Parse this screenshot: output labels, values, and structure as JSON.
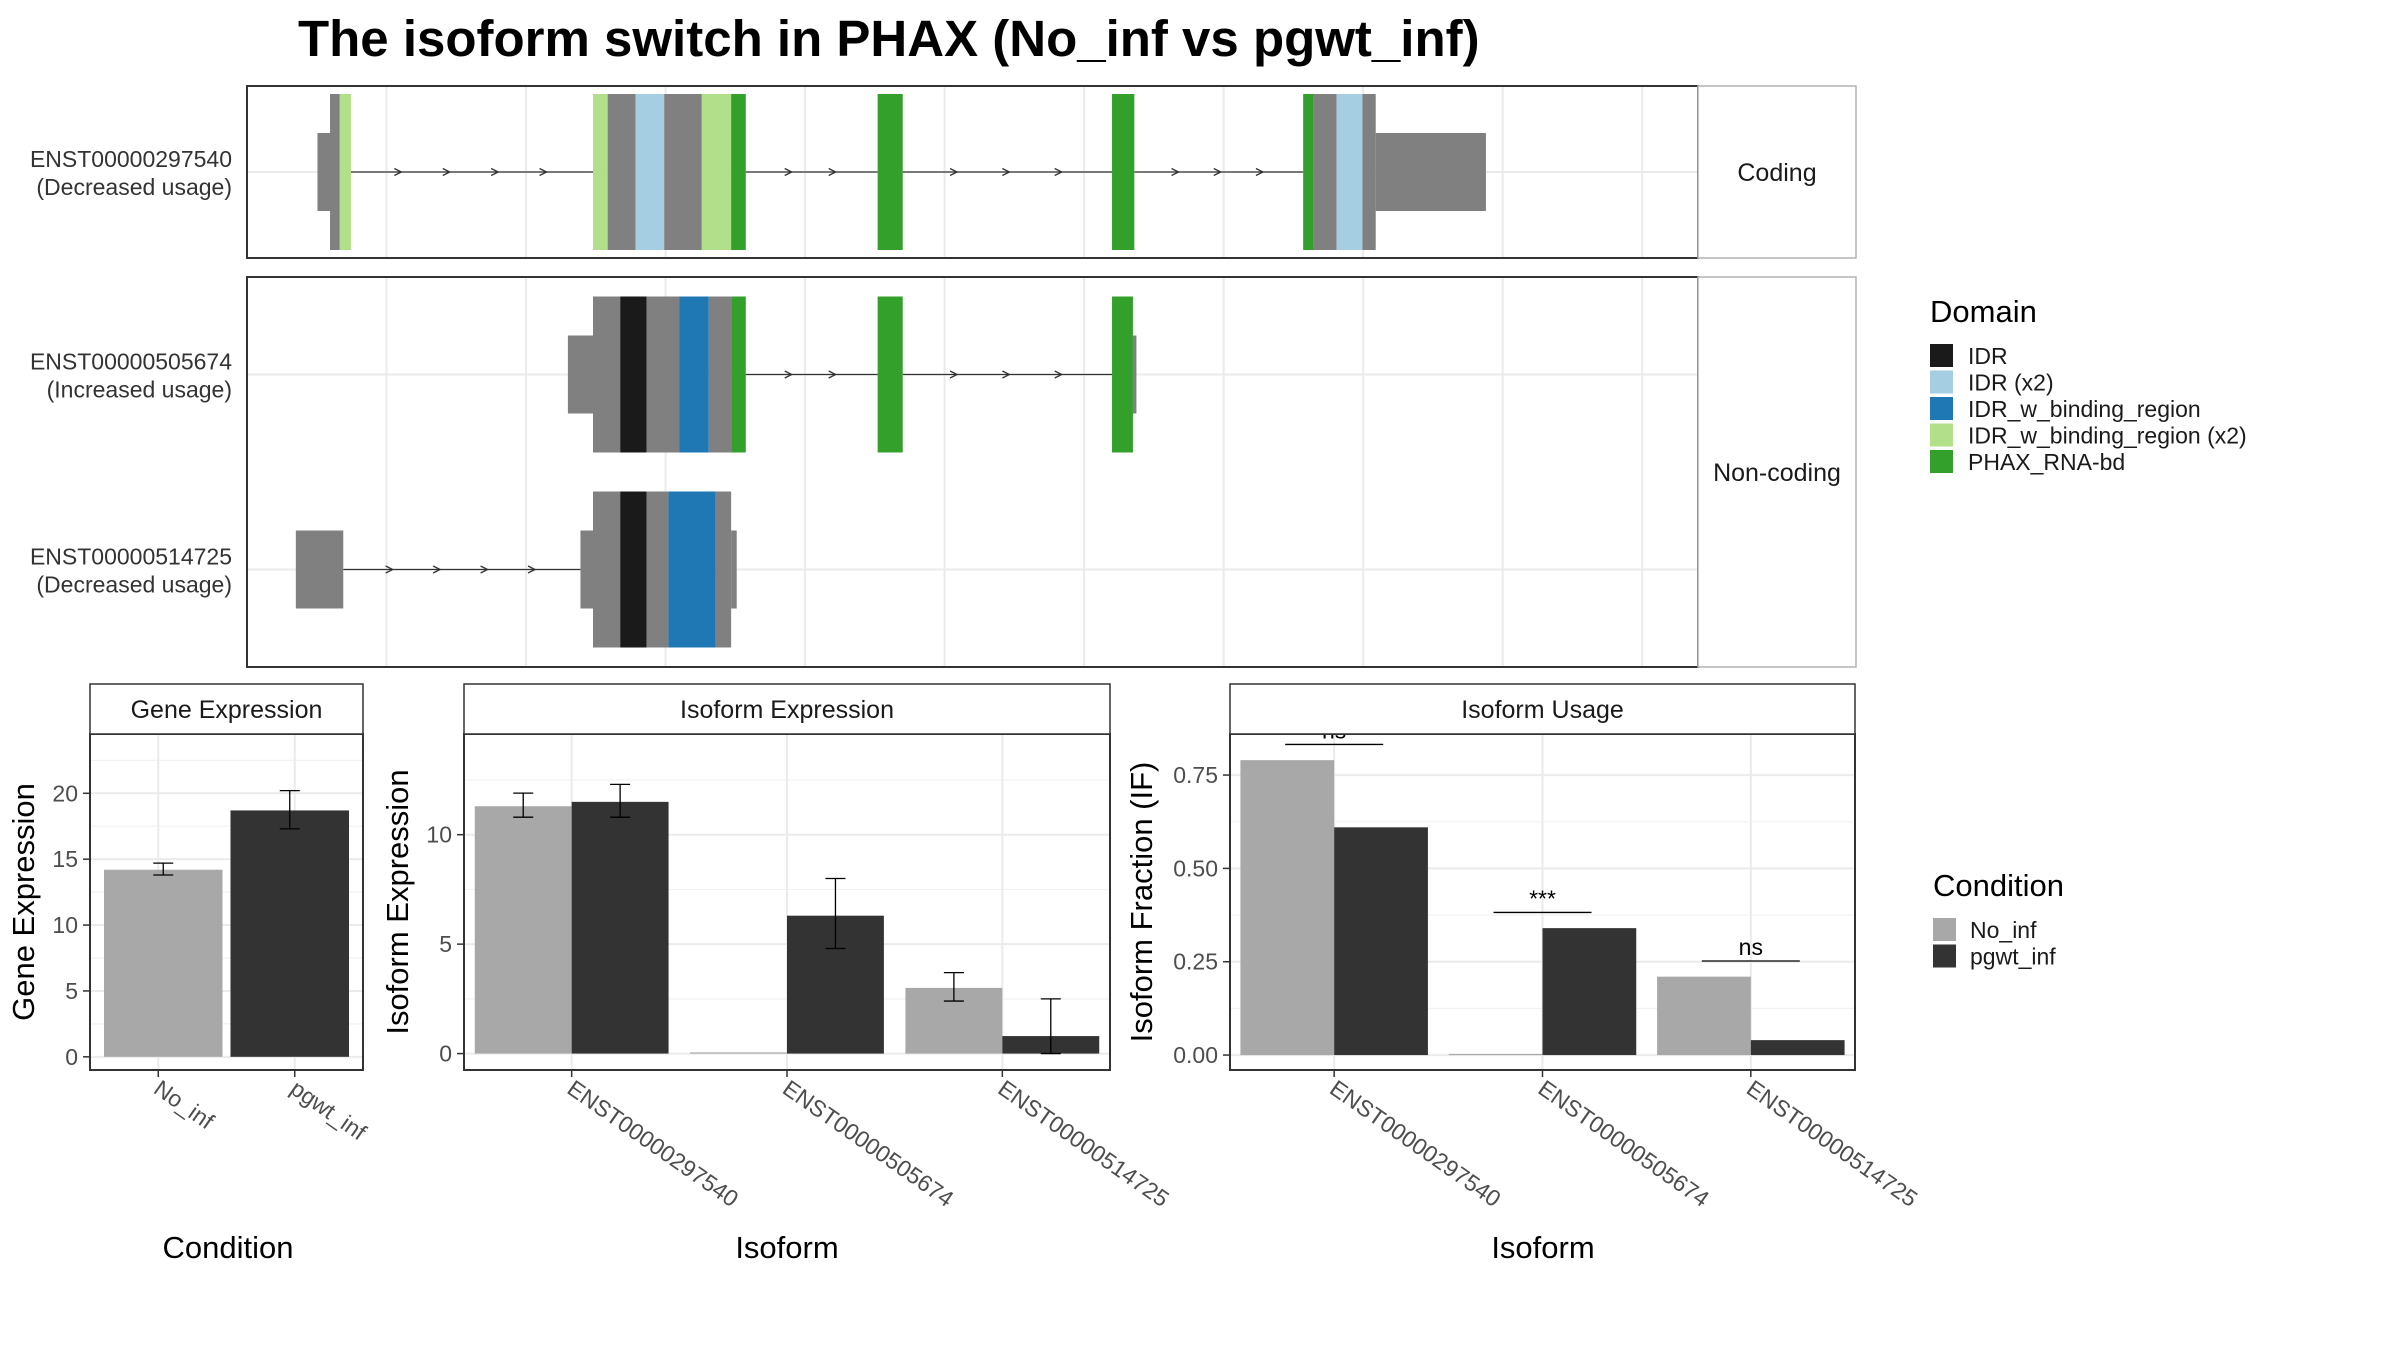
{
  "title": "The isoform switch in PHAX (No_inf vs pgwt_inf)",
  "colors": {
    "exon_plain": "#808080",
    "IDR": "#1a1a1a",
    "IDR (x2)": "#a6cee3",
    "IDR_w_binding_region": "#1f78b4",
    "IDR_w_binding_region (x2)": "#b2df8a",
    "PHAX_RNA-bd": "#33a02c",
    "No_inf": "#a8a8a8",
    "pgwt_inf": "#333333"
  },
  "structure": {
    "panels": [
      {
        "strip": "Coding",
        "transcripts": [
          {
            "id": "ENST00000297540",
            "usage": "(Decreased usage)",
            "exons": [
              {
                "start": 0.05,
                "end": 0.95,
                "height": "utr"
              },
              {
                "start": 0.95,
                "end": 1.65,
                "height": "cds"
              },
              {
                "start": 1.65,
                "end": 2.45,
                "height": "cds",
                "domain": "IDR_w_binding_region (x2)"
              },
              {
                "start": 19.8,
                "end": 20.85,
                "height": "cds",
                "domain": "IDR_w_binding_region (x2)"
              },
              {
                "start": 20.85,
                "end": 22.85,
                "height": "cds"
              },
              {
                "start": 22.85,
                "end": 24.9,
                "height": "cds",
                "domain": "IDR (x2)"
              },
              {
                "start": 24.9,
                "end": 27.6,
                "height": "cds"
              },
              {
                "start": 27.6,
                "end": 29.7,
                "height": "cds",
                "domain": "IDR_w_binding_region (x2)"
              },
              {
                "start": 29.7,
                "end": 30.75,
                "height": "cds",
                "domain": "PHAX_RNA-bd"
              },
              {
                "start": 40.2,
                "end": 42.0,
                "height": "cds",
                "domain": "PHAX_RNA-bd"
              },
              {
                "start": 57.0,
                "end": 58.6,
                "height": "cds",
                "domain": "PHAX_RNA-bd"
              },
              {
                "start": 70.7,
                "end": 71.45,
                "height": "cds",
                "domain": "PHAX_RNA-bd"
              },
              {
                "start": 71.45,
                "end": 73.1,
                "height": "cds"
              },
              {
                "start": 73.1,
                "end": 74.95,
                "height": "cds",
                "domain": "IDR (x2)"
              },
              {
                "start": 74.95,
                "end": 75.9,
                "height": "cds"
              },
              {
                "start": 75.9,
                "end": 83.8,
                "height": "utr"
              }
            ]
          }
        ]
      },
      {
        "strip": "Non-coding",
        "transcripts": [
          {
            "id": "ENST00000505674",
            "usage": "(Increased usage)",
            "exons": [
              {
                "start": 18.0,
                "end": 19.8,
                "height": "utr"
              },
              {
                "start": 19.8,
                "end": 21.75,
                "height": "cds"
              },
              {
                "start": 21.75,
                "end": 23.65,
                "height": "cds",
                "domain": "IDR"
              },
              {
                "start": 23.65,
                "end": 26.0,
                "height": "cds"
              },
              {
                "start": 26.0,
                "end": 28.1,
                "height": "cds",
                "domain": "IDR_w_binding_region"
              },
              {
                "start": 28.1,
                "end": 29.7,
                "height": "cds"
              },
              {
                "start": 29.7,
                "end": 30.75,
                "height": "cds",
                "domain": "PHAX_RNA-bd"
              },
              {
                "start": 40.2,
                "end": 42.0,
                "height": "cds",
                "domain": "PHAX_RNA-bd"
              },
              {
                "start": 57.0,
                "end": 58.5,
                "height": "cds",
                "domain": "PHAX_RNA-bd"
              },
              {
                "start": 58.5,
                "end": 58.75,
                "height": "utr"
              }
            ]
          },
          {
            "id": "ENST00000514725",
            "usage": "(Decreased usage)",
            "exons": [
              {
                "start": -1.5,
                "end": 1.9,
                "height": "utr"
              },
              {
                "start": 18.9,
                "end": 19.8,
                "height": "utr"
              },
              {
                "start": 19.8,
                "end": 21.75,
                "height": "cds"
              },
              {
                "start": 21.75,
                "end": 23.65,
                "height": "cds",
                "domain": "IDR"
              },
              {
                "start": 23.65,
                "end": 25.2,
                "height": "cds"
              },
              {
                "start": 25.2,
                "end": 28.6,
                "height": "cds",
                "domain": "IDR_w_binding_region"
              },
              {
                "start": 28.6,
                "end": 29.7,
                "height": "cds"
              },
              {
                "start": 29.7,
                "end": 30.1,
                "height": "utr"
              }
            ]
          }
        ]
      }
    ]
  },
  "domain_legend": {
    "title": "Domain",
    "entries": [
      "IDR",
      "IDR (x2)",
      "IDR_w_binding_region",
      "IDR_w_binding_region (x2)",
      "PHAX_RNA-bd"
    ]
  },
  "condition_legend": {
    "title": "Condition",
    "entries": [
      "No_inf",
      "pgwt_inf"
    ]
  },
  "chart_data": [
    {
      "type": "bar",
      "strip": "Gene Expression",
      "categories": [
        "No_inf",
        "pgwt_inf"
      ],
      "values": [
        14.2,
        18.7
      ],
      "error_low": [
        13.8,
        17.3
      ],
      "error_high": [
        14.7,
        20.2
      ],
      "xlabel": "Condition",
      "ylabel": "Gene Expression",
      "ylim": [
        -1.0,
        24.5
      ],
      "yticks": [
        0,
        5,
        10,
        15,
        20
      ]
    },
    {
      "type": "bar",
      "strip": "Isoform Expression",
      "categories": [
        "ENST00000297540",
        "ENST00000505674",
        "ENST00000514725"
      ],
      "series": [
        {
          "name": "No_inf",
          "values": [
            11.3,
            0.0,
            3.0
          ],
          "error_low": [
            10.8,
            0.0,
            2.4
          ],
          "error_high": [
            11.9,
            0.0,
            3.7
          ]
        },
        {
          "name": "pgwt_inf",
          "values": [
            11.5,
            6.3,
            0.8
          ],
          "error_low": [
            10.8,
            4.8,
            0.0
          ],
          "error_high": [
            12.3,
            8.0,
            2.5
          ]
        }
      ],
      "xlabel": "Isoform",
      "ylabel": "Isoform Expression",
      "ylim": [
        -0.75,
        14.6
      ],
      "yticks": [
        0,
        5,
        10
      ]
    },
    {
      "type": "bar",
      "strip": "Isoform Usage",
      "categories": [
        "ENST00000297540",
        "ENST00000505674",
        "ENST00000514725"
      ],
      "series": [
        {
          "name": "No_inf",
          "values": [
            0.79,
            0.0,
            0.21
          ]
        },
        {
          "name": "pgwt_inf",
          "values": [
            0.61,
            0.34,
            0.04
          ]
        }
      ],
      "significance": [
        "ns",
        "***",
        "ns"
      ],
      "xlabel": "Isoform",
      "ylabel": "Isoform Fraction (IF)",
      "ylim": [
        -0.04,
        0.86
      ],
      "yticks": [
        "0.00",
        "0.25",
        "0.50",
        "0.75"
      ]
    }
  ]
}
